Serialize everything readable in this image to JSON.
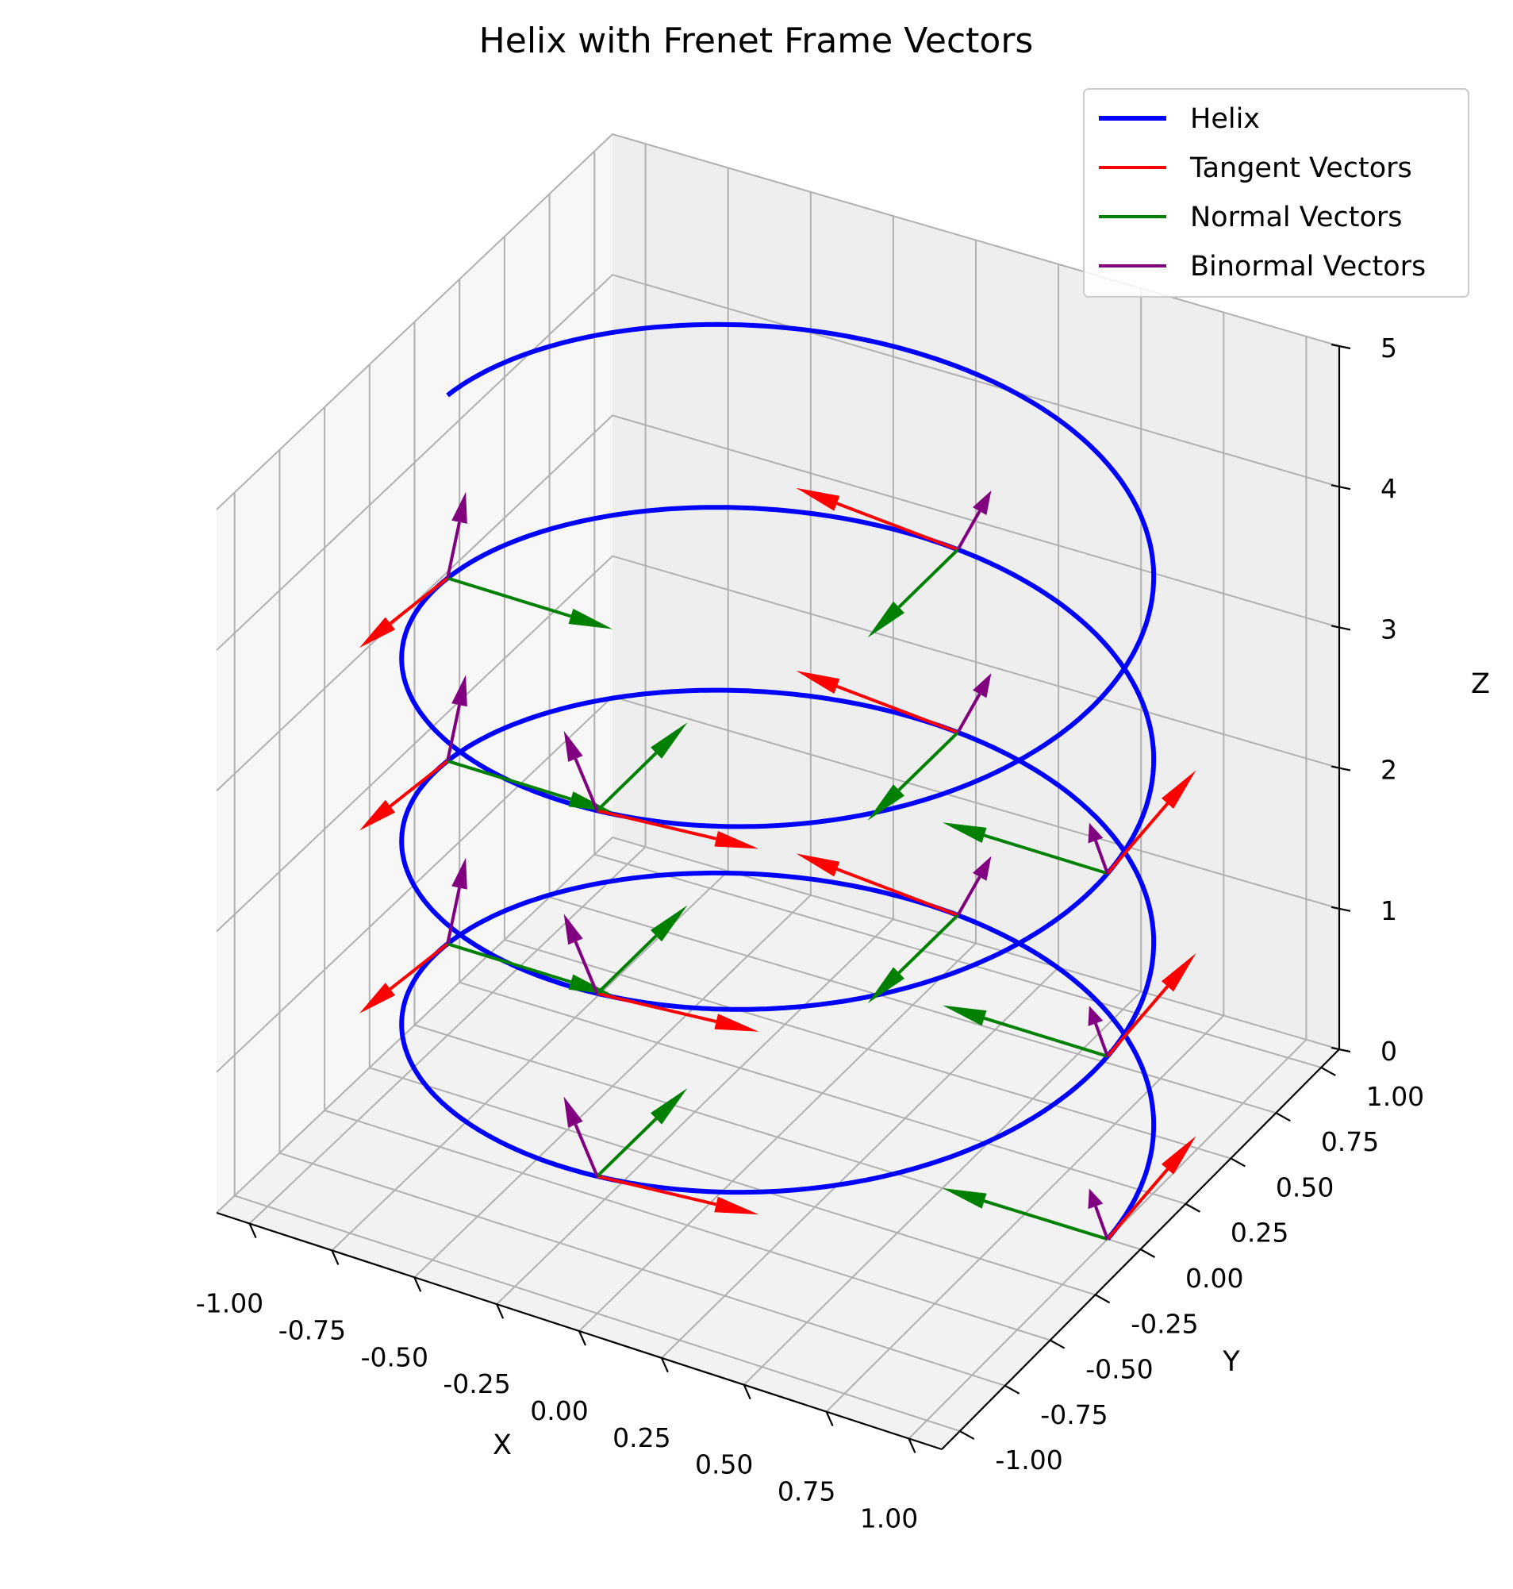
{
  "chart_data": {
    "type": "line",
    "projection": "3d",
    "title": "Helix with Frenet Frame Vectors",
    "xlabel": "X",
    "ylabel": "Y",
    "zlabel": "Z",
    "xlim": [
      -1.1,
      1.1
    ],
    "ylim": [
      -1.1,
      1.1
    ],
    "zlim": [
      0,
      5
    ],
    "x_ticks": [
      "-1.00",
      "-0.75",
      "-0.50",
      "-0.25",
      "0.00",
      "0.25",
      "0.50",
      "0.75",
      "1.00"
    ],
    "y_ticks": [
      "-1.00",
      "-0.75",
      "-0.50",
      "-0.25",
      "0.00",
      "0.25",
      "0.50",
      "0.75",
      "1.00"
    ],
    "z_ticks": [
      "0",
      "1",
      "2",
      "3",
      "4",
      "5"
    ],
    "grid": true,
    "legend_position": "top-right",
    "helix": {
      "name": "Helix",
      "color": "#0000ff",
      "radius": 1,
      "pitch_per_turn": 1.3,
      "turns": 3.5
    },
    "frame_points_t": [
      0.0,
      1.5708,
      3.1416,
      4.7124,
      6.2832,
      7.854,
      9.4248,
      10.9956,
      12.5664,
      14.1372,
      15.708,
      17.2788
    ],
    "vector_length": 0.5,
    "series": [
      {
        "name": "Tangent Vectors",
        "color": "#ff0000"
      },
      {
        "name": "Normal Vectors",
        "color": "#008000"
      },
      {
        "name": "Binormal Vectors",
        "color": "#800080"
      }
    ]
  }
}
